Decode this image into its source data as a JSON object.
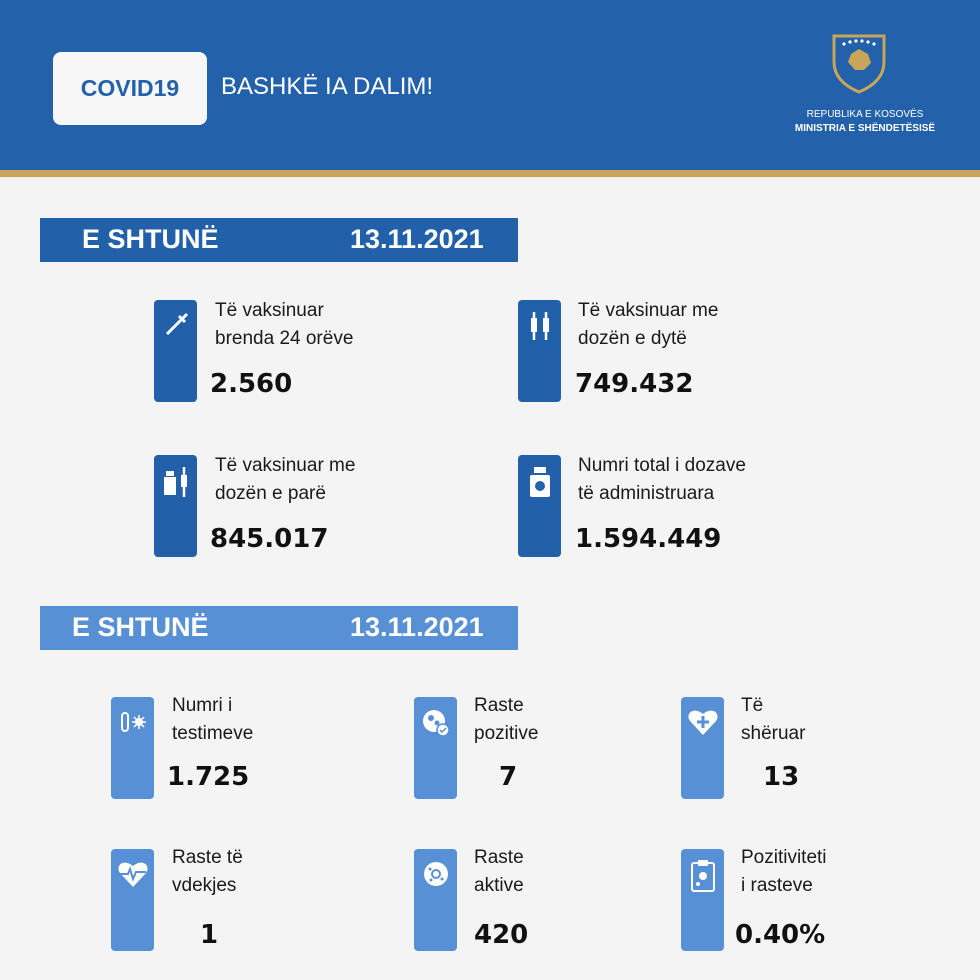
{
  "header": {
    "logo_text": "COVID19",
    "slogan": "BASHKË IA DALIM!",
    "republic": "REPUBLIKA E KOSOVËS",
    "ministry": "MINISTRIA E SHËNDETËSISË",
    "colors": {
      "blue": "#2361ab",
      "gold": "#c9a55a"
    }
  },
  "vaccination": {
    "day": "E SHTUNË",
    "date": "13.11.2021",
    "items": [
      {
        "icon": "syringe-icon",
        "label1": "Të vaksinuar",
        "label2": "brenda 24 orëve",
        "value": "2.560"
      },
      {
        "icon": "two-syringes-icon",
        "label1": "Të vaksinuar me",
        "label2": "dozën e dytë",
        "value": "749.432"
      },
      {
        "icon": "vial-syringe-icon",
        "label1": "Të vaksinuar me",
        "label2": "dozën e parë",
        "value": "845.017"
      },
      {
        "icon": "vaccine-bottle-icon",
        "label1": "Numri total i dozave",
        "label2": "të administruara",
        "value": "1.594.449"
      }
    ]
  },
  "cases": {
    "day": "E SHTUNË",
    "date": "13.11.2021",
    "items": [
      {
        "icon": "test-tube-virus-icon",
        "label1": "Numri i",
        "label2": "testimeve",
        "value": "1.725"
      },
      {
        "icon": "virus-check-icon",
        "label1": "Raste",
        "label2": "pozitive",
        "value": "7"
      },
      {
        "icon": "heart-plus-icon",
        "label1": "Të",
        "label2": "shëruar",
        "value": "13"
      },
      {
        "icon": "heartbeat-icon",
        "label1": "Raste të",
        "label2": "vdekjes",
        "value": "1"
      },
      {
        "icon": "virus-icon",
        "label1": "Raste",
        "label2": "aktive",
        "value": "420"
      },
      {
        "icon": "clipboard-virus-icon",
        "label1": "Pozitiviteti",
        "label2": "i rasteve",
        "value": "0.40%"
      }
    ]
  }
}
